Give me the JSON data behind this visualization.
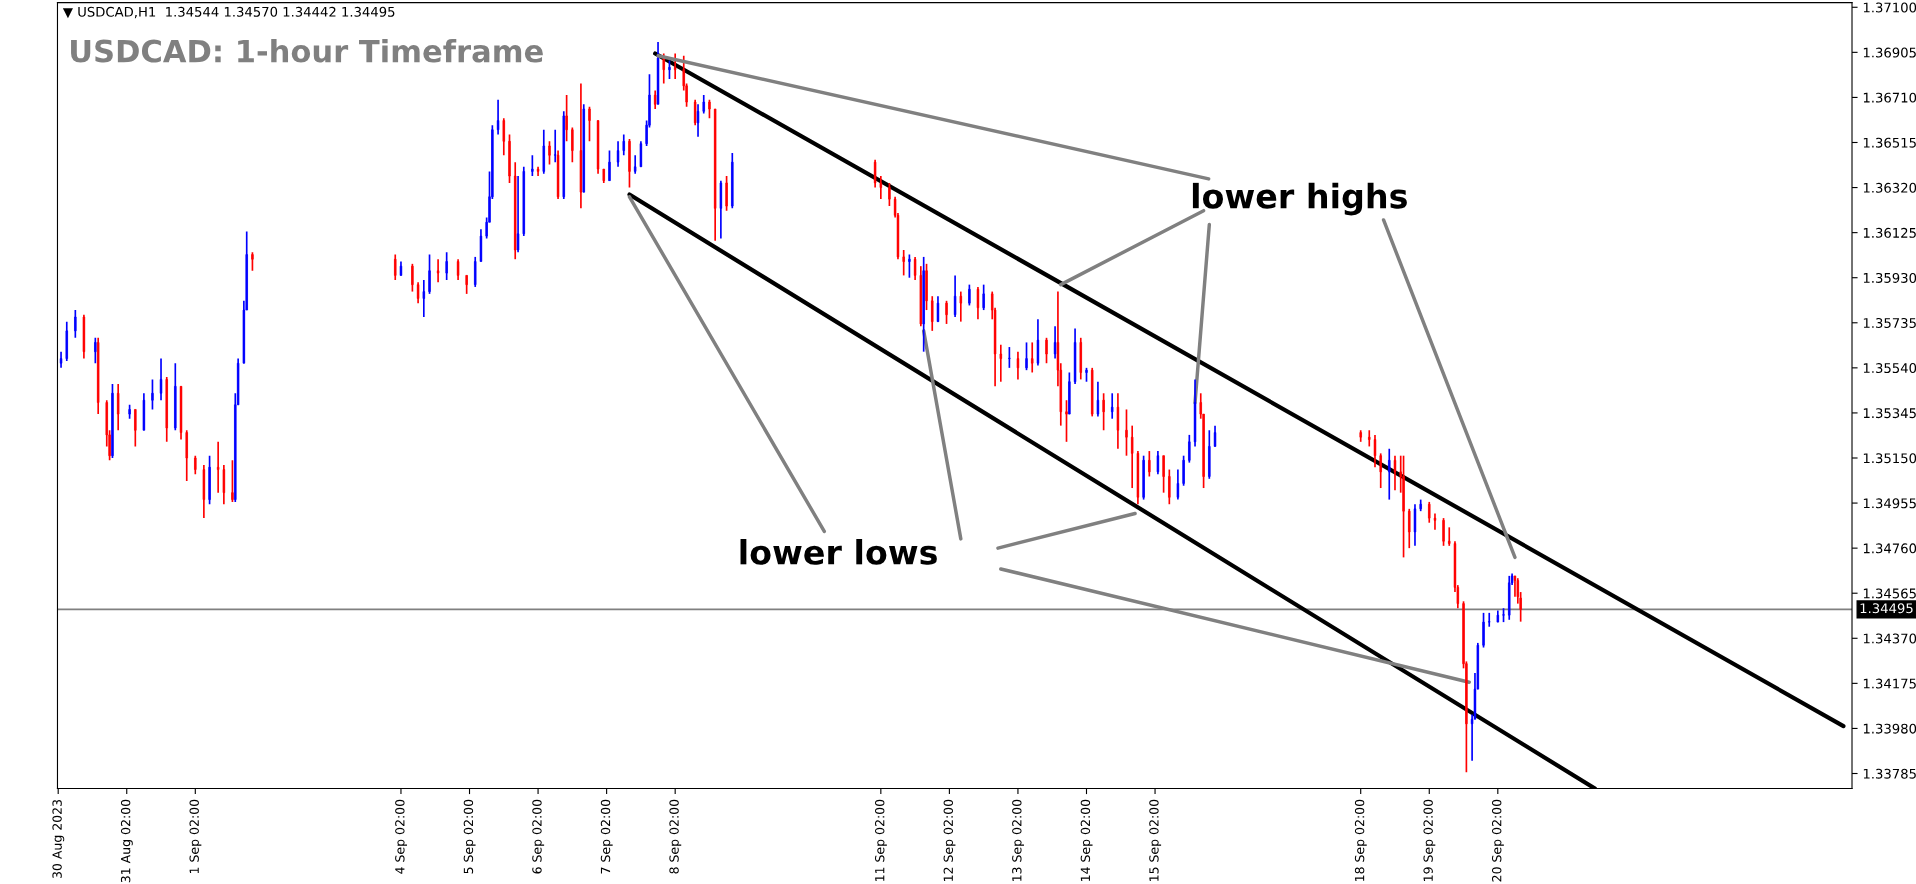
{
  "chart_data": {
    "type": "candlestick",
    "title": "USDCAD: 1-hour Timeframe",
    "annotations": [
      "▼ USDCAD,H1  1.34544 1.34570 1.34442 1.34495",
      {
        "text": "lower highs",
        "x": "2023-09-07T20:00",
        "y": 1.3689
      },
      {
        "text": "lower lows",
        "x": "2023-09-07T10:00",
        "y": 1.3628
      }
    ],
    "x": [
      "2023-08-30T03:00",
      "2023-08-30T05:00",
      "2023-08-30T08:00",
      "2023-08-30T11:00",
      "2023-08-30T15:00",
      "2023-08-30T16:00",
      "2023-08-30T19:00",
      "2023-08-30T20:00",
      "2023-08-30T21:00",
      "2023-08-30T23:00",
      "2023-08-31T03:00",
      "2023-08-31T05:00",
      "2023-08-31T08:00",
      "2023-08-31T11:00",
      "2023-08-31T14:00",
      "2023-08-31T16:00",
      "2023-08-31T19:00",
      "2023-08-31T21:00",
      "2023-08-31T23:00",
      "2023-09-01T02:00",
      "2023-09-01T05:00",
      "2023-09-01T07:00",
      "2023-09-01T10:00",
      "2023-09-01T12:00",
      "2023-09-01T15:00",
      "2023-09-01T16:00",
      "2023-09-01T17:00",
      "2023-09-01T19:00",
      "2023-09-01T20:00",
      "2023-09-01T22:00",
      "2023-09-04T00:00",
      "2023-09-04T02:00",
      "2023-09-04T06:00",
      "2023-09-04T08:00",
      "2023-09-04T10:00",
      "2023-09-04T12:00",
      "2023-09-04T15:00",
      "2023-09-04T18:00",
      "2023-09-04T22:00",
      "2023-09-05T01:00",
      "2023-09-05T04:00",
      "2023-09-05T06:00",
      "2023-09-05T08:00",
      "2023-09-05T09:00",
      "2023-09-05T10:00",
      "2023-09-05T12:00",
      "2023-09-05T14:00",
      "2023-09-05T16:00",
      "2023-09-05T18:00",
      "2023-09-05T19:00",
      "2023-09-05T21:00",
      "2023-09-06T00:00",
      "2023-09-06T02:00",
      "2023-09-06T04:00",
      "2023-09-06T06:00",
      "2023-09-06T08:00",
      "2023-09-06T09:00",
      "2023-09-06T11:00",
      "2023-09-06T12:00",
      "2023-09-06T14:00",
      "2023-09-06T17:00",
      "2023-09-06T18:00",
      "2023-09-06T20:00",
      "2023-09-06T23:00",
      "2023-09-07T01:00",
      "2023-09-07T03:00",
      "2023-09-07T06:00",
      "2023-09-07T08:00",
      "2023-09-07T10:00",
      "2023-09-07T12:00",
      "2023-09-07T14:00",
      "2023-09-07T16:00",
      "2023-09-07T17:00",
      "2023-09-07T19:00",
      "2023-09-07T20:00",
      "2023-09-07T22:00",
      "2023-09-08T00:00",
      "2023-09-08T02:00",
      "2023-09-08T05:00",
      "2023-09-08T06:00",
      "2023-09-08T09:00",
      "2023-09-08T10:00",
      "2023-09-08T12:00",
      "2023-09-08T14:00",
      "2023-09-08T16:00",
      "2023-09-08T18:00",
      "2023-09-08T20:00",
      "2023-09-08T22:00",
      "2023-09-11T00:00",
      "2023-09-11T02:00",
      "2023-09-11T05:00",
      "2023-09-11T07:00",
      "2023-09-11T08:00",
      "2023-09-11T10:00",
      "2023-09-11T12:00",
      "2023-09-11T14:00",
      "2023-09-11T16:00",
      "2023-09-11T17:00",
      "2023-09-11T18:00",
      "2023-09-11T20:00",
      "2023-09-11T22:00",
      "2023-09-12T01:00",
      "2023-09-12T04:00",
      "2023-09-12T06:00",
      "2023-09-12T09:00",
      "2023-09-12T12:00",
      "2023-09-12T14:00",
      "2023-09-12T17:00",
      "2023-09-12T18:00",
      "2023-09-12T20:00",
      "2023-09-12T23:00",
      "2023-09-13T02:00",
      "2023-09-13T05:00",
      "2023-09-13T07:00",
      "2023-09-13T09:00",
      "2023-09-13T12:00",
      "2023-09-13T15:00",
      "2023-09-13T16:00",
      "2023-09-13T17:00",
      "2023-09-13T19:00",
      "2023-09-13T20:00",
      "2023-09-13T22:00",
      "2023-09-14T00:00",
      "2023-09-14T02:00",
      "2023-09-14T04:00",
      "2023-09-14T06:00",
      "2023-09-14T08:00",
      "2023-09-14T11:00",
      "2023-09-14T13:00",
      "2023-09-14T16:00",
      "2023-09-14T18:00",
      "2023-09-14T20:00",
      "2023-09-14T22:00",
      "2023-09-15T00:00",
      "2023-09-15T03:00",
      "2023-09-15T05:00",
      "2023-09-15T07:00",
      "2023-09-15T10:00",
      "2023-09-15T12:00",
      "2023-09-15T14:00",
      "2023-09-15T16:00",
      "2023-09-15T18:00",
      "2023-09-15T19:00",
      "2023-09-15T21:00",
      "2023-09-15T23:00",
      "2023-09-18T02:00",
      "2023-09-18T05:00",
      "2023-09-18T07:00",
      "2023-09-18T09:00",
      "2023-09-18T12:00",
      "2023-09-18T14:00",
      "2023-09-18T16:00",
      "2023-09-18T17:00",
      "2023-09-18T19:00",
      "2023-09-18T21:00",
      "2023-09-18T23:00",
      "2023-09-19T02:00",
      "2023-09-19T04:00",
      "2023-09-19T07:00",
      "2023-09-19T09:00",
      "2023-09-19T11:00",
      "2023-09-19T12:00",
      "2023-09-19T14:00",
      "2023-09-19T15:00",
      "2023-09-19T17:00",
      "2023-09-19T18:00",
      "2023-09-19T19:00",
      "2023-09-19T21:00",
      "2023-09-19T23:00",
      "2023-09-20T02:00",
      "2023-09-20T04:00",
      "2023-09-20T06:00",
      "2023-09-20T07:00",
      "2023-09-20T08:00",
      "2023-09-20T09:00",
      "2023-09-20T10:00"
    ],
    "ohlc": [
      [
        1.3556,
        1.3561,
        1.3554,
        1.3558
      ],
      [
        1.3558,
        1.3574,
        1.3557,
        1.357
      ],
      [
        1.357,
        1.3579,
        1.3567,
        1.3576
      ],
      [
        1.3576,
        1.3577,
        1.3558,
        1.3561
      ],
      [
        1.3561,
        1.3567,
        1.3556,
        1.3565
      ],
      [
        1.3565,
        1.3567,
        1.3534,
        1.3539
      ],
      [
        1.3539,
        1.354,
        1.352,
        1.3525
      ],
      [
        1.3525,
        1.3527,
        1.3514,
        1.3516
      ],
      [
        1.3516,
        1.3547,
        1.3515,
        1.3543
      ],
      [
        1.3543,
        1.3547,
        1.3527,
        1.3534
      ],
      [
        1.3534,
        1.3538,
        1.3532,
        1.3536
      ],
      [
        1.3536,
        1.3536,
        1.352,
        1.3527
      ],
      [
        1.3527,
        1.3543,
        1.3527,
        1.354
      ],
      [
        1.354,
        1.3549,
        1.3536,
        1.3543
      ],
      [
        1.3543,
        1.3558,
        1.354,
        1.3549
      ],
      [
        1.3549,
        1.355,
        1.3522,
        1.3528
      ],
      [
        1.3528,
        1.3556,
        1.3527,
        1.3546
      ],
      [
        1.3546,
        1.3546,
        1.3523,
        1.3526
      ],
      [
        1.3526,
        1.3527,
        1.3505,
        1.3515
      ],
      [
        1.3515,
        1.3516,
        1.3508,
        1.351
      ],
      [
        1.351,
        1.3512,
        1.3489,
        1.3497
      ],
      [
        1.3497,
        1.3516,
        1.3495,
        1.3511
      ],
      [
        1.3511,
        1.3522,
        1.35,
        1.351
      ],
      [
        1.351,
        1.3512,
        1.3495,
        1.35
      ],
      [
        1.35,
        1.3514,
        1.3496,
        1.3497
      ],
      [
        1.3497,
        1.3543,
        1.3496,
        1.3538
      ],
      [
        1.3538,
        1.3558,
        1.3538,
        1.3556
      ],
      [
        1.3556,
        1.3583,
        1.3556,
        1.3579
      ],
      [
        1.3579,
        1.3613,
        1.3579,
        1.3603
      ],
      [
        1.3603,
        1.3604,
        1.3596,
        1.3601
      ],
      [
        1.3601,
        1.3603,
        1.3592,
        1.3594
      ],
      [
        1.3594,
        1.36,
        1.3594,
        1.3598
      ],
      [
        1.3598,
        1.3599,
        1.3587,
        1.359
      ],
      [
        1.359,
        1.3591,
        1.3582,
        1.3584
      ],
      [
        1.3584,
        1.3592,
        1.3576,
        1.3587
      ],
      [
        1.3587,
        1.3603,
        1.3586,
        1.3596
      ],
      [
        1.3596,
        1.3601,
        1.3591,
        1.3595
      ],
      [
        1.3595,
        1.3604,
        1.3592,
        1.36
      ],
      [
        1.36,
        1.3601,
        1.3592,
        1.3594
      ],
      [
        1.3594,
        1.3594,
        1.3586,
        1.359
      ],
      [
        1.359,
        1.3602,
        1.3589,
        1.36
      ],
      [
        1.36,
        1.3614,
        1.36,
        1.3611
      ],
      [
        1.3611,
        1.3619,
        1.361,
        1.3617
      ],
      [
        1.3617,
        1.3639,
        1.3617,
        1.3628
      ],
      [
        1.3628,
        1.3659,
        1.3627,
        1.3657
      ],
      [
        1.3657,
        1.367,
        1.3655,
        1.3661
      ],
      [
        1.3661,
        1.3662,
        1.3646,
        1.3652
      ],
      [
        1.3652,
        1.3655,
        1.3634,
        1.3637
      ],
      [
        1.3637,
        1.3643,
        1.3601,
        1.3605
      ],
      [
        1.3605,
        1.3637,
        1.3604,
        1.3612
      ],
      [
        1.3612,
        1.3641,
        1.3611,
        1.3639
      ],
      [
        1.3639,
        1.3646,
        1.3637,
        1.364
      ],
      [
        1.364,
        1.3641,
        1.3637,
        1.3639
      ],
      [
        1.3639,
        1.3657,
        1.3638,
        1.365
      ],
      [
        1.365,
        1.3652,
        1.3642,
        1.3646
      ],
      [
        1.3646,
        1.3657,
        1.3643,
        1.3646
      ],
      [
        1.3646,
        1.3648,
        1.3627,
        1.3628
      ],
      [
        1.3628,
        1.3665,
        1.3627,
        1.3663
      ],
      [
        1.3663,
        1.3672,
        1.3652,
        1.3657
      ],
      [
        1.3657,
        1.3658,
        1.3643,
        1.3648
      ],
      [
        1.3648,
        1.3677,
        1.3623,
        1.363
      ],
      [
        1.363,
        1.3668,
        1.363,
        1.3666
      ],
      [
        1.3666,
        1.3667,
        1.3652,
        1.3661
      ],
      [
        1.3661,
        1.3661,
        1.3638,
        1.364
      ],
      [
        1.364,
        1.364,
        1.3634,
        1.3635
      ],
      [
        1.3635,
        1.3648,
        1.3635,
        1.3643
      ],
      [
        1.3643,
        1.3652,
        1.3641,
        1.3648
      ],
      [
        1.3648,
        1.3655,
        1.3646,
        1.3652
      ],
      [
        1.3652,
        1.3653,
        1.3632,
        1.3639
      ],
      [
        1.3639,
        1.3646,
        1.3638,
        1.3641
      ],
      [
        1.3641,
        1.3652,
        1.3641,
        1.3651
      ],
      [
        1.3651,
        1.3661,
        1.365,
        1.3659
      ],
      [
        1.3659,
        1.3681,
        1.3658,
        1.3672
      ],
      [
        1.3672,
        1.3674,
        1.3666,
        1.3668
      ],
      [
        1.3668,
        1.3695,
        1.3668,
        1.3688
      ],
      [
        1.3688,
        1.369,
        1.3677,
        1.3683
      ],
      [
        1.3683,
        1.3687,
        1.3679,
        1.3684
      ],
      [
        1.3684,
        1.369,
        1.3679,
        1.3683
      ],
      [
        1.3683,
        1.3689,
        1.3674,
        1.3676
      ],
      [
        1.3676,
        1.3677,
        1.3667,
        1.3669
      ],
      [
        1.3669,
        1.367,
        1.3659,
        1.366
      ],
      [
        1.366,
        1.3668,
        1.3654,
        1.3665
      ],
      [
        1.3665,
        1.3672,
        1.3664,
        1.3669
      ],
      [
        1.3669,
        1.367,
        1.3662,
        1.3666
      ],
      [
        1.3666,
        1.3666,
        1.3609,
        1.3623
      ],
      [
        1.3623,
        1.3635,
        1.361,
        1.3634
      ],
      [
        1.3634,
        1.3637,
        1.3622,
        1.3624
      ],
      [
        1.3624,
        1.3647,
        1.3623,
        1.3643
      ],
      [
        1.3643,
        1.3644,
        1.3632,
        1.3634
      ],
      [
        1.3634,
        1.3637,
        1.3627,
        1.3632
      ],
      [
        1.3632,
        1.3634,
        1.3624,
        1.3627
      ],
      [
        1.3627,
        1.3628,
        1.3619,
        1.362
      ],
      [
        1.362,
        1.3621,
        1.3601,
        1.3602
      ],
      [
        1.3602,
        1.3605,
        1.3594,
        1.36
      ],
      [
        1.36,
        1.3603,
        1.3593,
        1.3601
      ],
      [
        1.3601,
        1.3602,
        1.3592,
        1.3594
      ],
      [
        1.3594,
        1.3598,
        1.3572,
        1.3573
      ],
      [
        1.3573,
        1.3602,
        1.3561,
        1.3596
      ],
      [
        1.3596,
        1.3599,
        1.3579,
        1.3583
      ],
      [
        1.3583,
        1.3585,
        1.357,
        1.3574
      ],
      [
        1.3574,
        1.3585,
        1.3574,
        1.3582
      ],
      [
        1.3582,
        1.3583,
        1.3573,
        1.3577
      ],
      [
        1.3577,
        1.3594,
        1.3576,
        1.3585
      ],
      [
        1.3585,
        1.3587,
        1.3574,
        1.3582
      ],
      [
        1.3582,
        1.359,
        1.3581,
        1.3588
      ],
      [
        1.3588,
        1.3589,
        1.3575,
        1.358
      ],
      [
        1.358,
        1.359,
        1.3579,
        1.3586
      ],
      [
        1.3586,
        1.3587,
        1.3575,
        1.3579
      ],
      [
        1.3579,
        1.358,
        1.3546,
        1.356
      ],
      [
        1.356,
        1.3564,
        1.3548,
        1.3558
      ],
      [
        1.3558,
        1.3563,
        1.3554,
        1.3558
      ],
      [
        1.3558,
        1.3561,
        1.3549,
        1.3554
      ],
      [
        1.3554,
        1.3565,
        1.3553,
        1.3558
      ],
      [
        1.3558,
        1.3565,
        1.3552,
        1.3556
      ],
      [
        1.3556,
        1.3575,
        1.3555,
        1.3566
      ],
      [
        1.3566,
        1.3567,
        1.3556,
        1.356
      ],
      [
        1.356,
        1.3572,
        1.3558,
        1.3565
      ],
      [
        1.3565,
        1.3587,
        1.3546,
        1.3553
      ],
      [
        1.3553,
        1.3556,
        1.3529,
        1.3535
      ],
      [
        1.3535,
        1.354,
        1.3522,
        1.3534
      ],
      [
        1.3534,
        1.3552,
        1.3534,
        1.3548
      ],
      [
        1.3548,
        1.3571,
        1.3547,
        1.3565
      ],
      [
        1.3565,
        1.3567,
        1.3549,
        1.3552
      ],
      [
        1.3552,
        1.3554,
        1.3548,
        1.3553
      ],
      [
        1.3553,
        1.3554,
        1.3533,
        1.3534
      ],
      [
        1.3534,
        1.3548,
        1.3533,
        1.354
      ],
      [
        1.354,
        1.3543,
        1.3527,
        1.3535
      ],
      [
        1.3535,
        1.3543,
        1.3532,
        1.3537
      ],
      [
        1.3537,
        1.3543,
        1.3519,
        1.3527
      ],
      [
        1.3527,
        1.3536,
        1.3516,
        1.3524
      ],
      [
        1.3524,
        1.3529,
        1.3502,
        1.3517
      ],
      [
        1.3517,
        1.3518,
        1.3495,
        1.3498
      ],
      [
        1.3498,
        1.3516,
        1.3497,
        1.3514
      ],
      [
        1.3514,
        1.3518,
        1.3507,
        1.3509
      ],
      [
        1.3509,
        1.3518,
        1.3508,
        1.3516
      ],
      [
        1.3516,
        1.3516,
        1.35,
        1.3507
      ],
      [
        1.3507,
        1.351,
        1.3495,
        1.3498
      ],
      [
        1.3498,
        1.351,
        1.3497,
        1.3504
      ],
      [
        1.3504,
        1.3516,
        1.3503,
        1.3514
      ],
      [
        1.3514,
        1.3525,
        1.3513,
        1.3522
      ],
      [
        1.3522,
        1.3549,
        1.352,
        1.3539
      ],
      [
        1.3539,
        1.3543,
        1.3532,
        1.3534
      ],
      [
        1.3534,
        1.3534,
        1.3502,
        1.3507
      ],
      [
        1.3507,
        1.3527,
        1.3506,
        1.352
      ],
      [
        1.352,
        1.3529,
        1.352,
        1.3526
      ],
      [
        1.3526,
        1.3527,
        1.3522,
        1.3524
      ],
      [
        1.3524,
        1.3527,
        1.352,
        1.3523
      ],
      [
        1.3523,
        1.3525,
        1.3511,
        1.3516
      ],
      [
        1.3516,
        1.3517,
        1.3502,
        1.3509
      ],
      [
        1.3509,
        1.3519,
        1.3497,
        1.3514
      ],
      [
        1.3514,
        1.3516,
        1.3501,
        1.3509
      ],
      [
        1.3509,
        1.3516,
        1.35,
        1.3507
      ],
      [
        1.3507,
        1.3516,
        1.3472,
        1.3492
      ],
      [
        1.3492,
        1.3493,
        1.3476,
        1.3483
      ],
      [
        1.3483,
        1.3495,
        1.3477,
        1.3493
      ],
      [
        1.3493,
        1.3497,
        1.3492,
        1.3495
      ],
      [
        1.3495,
        1.3496,
        1.3487,
        1.3489
      ],
      [
        1.3489,
        1.3491,
        1.3484,
        1.3488
      ],
      [
        1.3488,
        1.3489,
        1.3477,
        1.3479
      ],
      [
        1.3479,
        1.3485,
        1.3477,
        1.3478
      ],
      [
        1.3478,
        1.3479,
        1.3457,
        1.3459
      ],
      [
        1.3459,
        1.346,
        1.345,
        1.3452
      ],
      [
        1.3452,
        1.3453,
        1.3424,
        1.3426
      ],
      [
        1.3426,
        1.3427,
        1.3379,
        1.34
      ],
      [
        1.34,
        1.3404,
        1.3384,
        1.3402
      ],
      [
        1.3402,
        1.3422,
        1.3402,
        1.3415
      ],
      [
        1.3415,
        1.3435,
        1.3415,
        1.3434
      ],
      [
        1.3434,
        1.3448,
        1.3433,
        1.3444
      ],
      [
        1.3444,
        1.3448,
        1.3442,
        1.3444
      ],
      [
        1.3444,
        1.3449,
        1.3444,
        1.3447
      ],
      [
        1.3447,
        1.345,
        1.3444,
        1.3447
      ],
      [
        1.3447,
        1.3464,
        1.3445,
        1.3461
      ],
      [
        1.3461,
        1.3465,
        1.346,
        1.3464
      ],
      [
        1.3464,
        1.3464,
        1.3455,
        1.3462
      ],
      [
        1.3462,
        1.3463,
        1.3452,
        1.3455
      ],
      [
        1.34544,
        1.3457,
        1.34442,
        1.34495
      ]
    ],
    "series": [
      {
        "type": "line",
        "color": "#000000",
        "x": [
          "2023-09-07T19:00",
          "2023-09-25T03:00"
        ],
        "values": [
          1.369,
          1.3399
        ]
      },
      {
        "type": "line",
        "color": "#000000",
        "x": [
          "2023-09-07T10:00",
          "2023-09-21T12:00"
        ],
        "values": [
          1.3629,
          1.3372
        ]
      },
      {
        "type": "line",
        "color": "#808080",
        "x": [
          "2023-09-15T19:00",
          "2023-09-13T17:00"
        ],
        "values": [
          1.3622,
          1.359
        ]
      },
      {
        "type": "line",
        "color": "#808080",
        "x": [
          "2023-09-15T21:00",
          "2023-09-15T16:00"
        ],
        "values": [
          1.3616,
          1.3539
        ]
      },
      {
        "type": "line",
        "color": "#808080",
        "x": [
          "2023-09-18T10:00",
          "2023-09-20T08:00"
        ],
        "values": [
          1.3618,
          1.3472
        ]
      },
      {
        "type": "line",
        "color": "#808080",
        "x": [
          "2023-09-12T06:00",
          "2023-09-11T17:00"
        ],
        "values": [
          1.348,
          1.357
        ]
      },
      {
        "type": "line",
        "color": "#808080",
        "x": [
          "2023-09-12T19:00",
          "2023-09-14T19:00"
        ],
        "values": [
          1.3476,
          1.3491
        ]
      },
      {
        "type": "line",
        "color": "#808080",
        "x": [
          "2023-09-12T20:00",
          "2023-09-19T16:00"
        ],
        "values": [
          1.3467,
          1.3418
        ]
      }
    ],
    "ref_lines": [
      {
        "axis": "y",
        "value": 1.34495,
        "label": "1.34495",
        "color": "#808080"
      }
    ],
    "xlim": [
      "2023-08-30T01:45",
      "2023-09-25T06:00"
    ],
    "xticks": [
      {
        "value": "2023-08-30T02:00",
        "label": "30 Aug 2023"
      },
      {
        "value": "2023-08-31T02:00",
        "label": "31 Aug 02:00"
      },
      {
        "value": "2023-09-01T02:00",
        "label": "1 Sep 02:00"
      },
      {
        "value": "2023-09-04T02:00",
        "label": "4 Sep 02:00"
      },
      {
        "value": "2023-09-05T02:00",
        "label": "5 Sep 02:00"
      },
      {
        "value": "2023-09-06T02:00",
        "label": "6 Sep 02:00"
      },
      {
        "value": "2023-09-07T02:00",
        "label": "7 Sep 02:00"
      },
      {
        "value": "2023-09-08T02:00",
        "label": "8 Sep 02:00"
      },
      {
        "value": "2023-09-11T02:00",
        "label": "11 Sep 02:00"
      },
      {
        "value": "2023-09-12T02:00",
        "label": "12 Sep 02:00"
      },
      {
        "value": "2023-09-13T02:00",
        "label": "13 Sep 02:00"
      },
      {
        "value": "2023-09-14T02:00",
        "label": "14 Sep 02:00"
      },
      {
        "value": "2023-09-15T02:00",
        "label": "15 Sep 02:00"
      },
      {
        "value": "2023-09-18T02:00",
        "label": "18 Sep 02:00"
      },
      {
        "value": "2023-09-19T02:00",
        "label": "19 Sep 02:00"
      },
      {
        "value": "2023-09-20T02:00",
        "label": "20 Sep 02:00"
      }
    ],
    "ylim": [
      1.3372,
      1.3712
    ],
    "yticks": [
      {
        "value": 1.371,
        "label": "1.37100"
      },
      {
        "value": 1.36905,
        "label": "1.36905"
      },
      {
        "value": 1.3671,
        "label": "1.36710"
      },
      {
        "value": 1.36515,
        "label": "1.36515"
      },
      {
        "value": 1.3632,
        "label": "1.36320"
      },
      {
        "value": 1.36125,
        "label": "1.36125"
      },
      {
        "value": 1.3593,
        "label": "1.35930"
      },
      {
        "value": 1.35735,
        "label": "1.35735"
      },
      {
        "value": 1.3554,
        "label": "1.35540"
      },
      {
        "value": 1.35345,
        "label": "1.35345"
      },
      {
        "value": 1.3515,
        "label": "1.35150"
      },
      {
        "value": 1.34955,
        "label": "1.34955"
      },
      {
        "value": 1.3476,
        "label": "1.34760"
      },
      {
        "value": 1.34565,
        "label": "1.34565"
      },
      {
        "value": 1.3437,
        "label": "1.34370"
      },
      {
        "value": 1.34175,
        "label": "1.34175"
      },
      {
        "value": 1.3398,
        "label": "1.33980"
      },
      {
        "value": 1.33785,
        "label": "1.33785"
      }
    ]
  }
}
